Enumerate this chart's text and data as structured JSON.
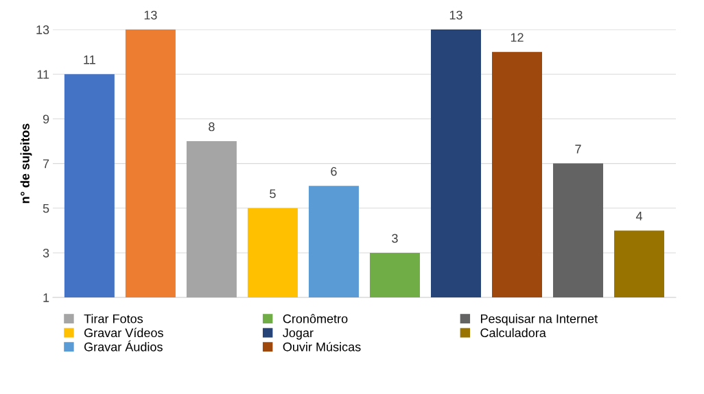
{
  "chart_data": {
    "type": "bar",
    "ylabel": "n° de sujeitos",
    "categories": [
      null
    ],
    "series": [
      {
        "color": "#4472c4",
        "values": [
          11
        ]
      },
      {
        "color": "#ed7d31",
        "values": [
          13
        ]
      },
      {
        "name": "Tirar Fotos",
        "color": "#a5a5a5",
        "values": [
          8
        ]
      },
      {
        "name": "Gravar Vídeos",
        "color": "#ffc000",
        "values": [
          5
        ]
      },
      {
        "name": "Gravar Áudios",
        "color": "#5b9bd5",
        "values": [
          6
        ]
      },
      {
        "name": "Cronômetro",
        "color": "#70ad47",
        "values": [
          3
        ]
      },
      {
        "name": "Jogar",
        "color": "#264478",
        "values": [
          13
        ]
      },
      {
        "name": "Ouvir Músicas",
        "color": "#9e480e",
        "values": [
          12
        ]
      },
      {
        "name": "Pesquisar na Internet",
        "color": "#636363",
        "values": [
          7
        ]
      },
      {
        "name": "Calculadora",
        "color": "#997300",
        "values": [
          4
        ]
      }
    ],
    "ylim": [
      1,
      13
    ],
    "yticks": [
      1,
      3,
      5,
      7,
      9,
      11,
      13
    ],
    "grid": "y",
    "legend": "bottom",
    "data_labels": true
  }
}
